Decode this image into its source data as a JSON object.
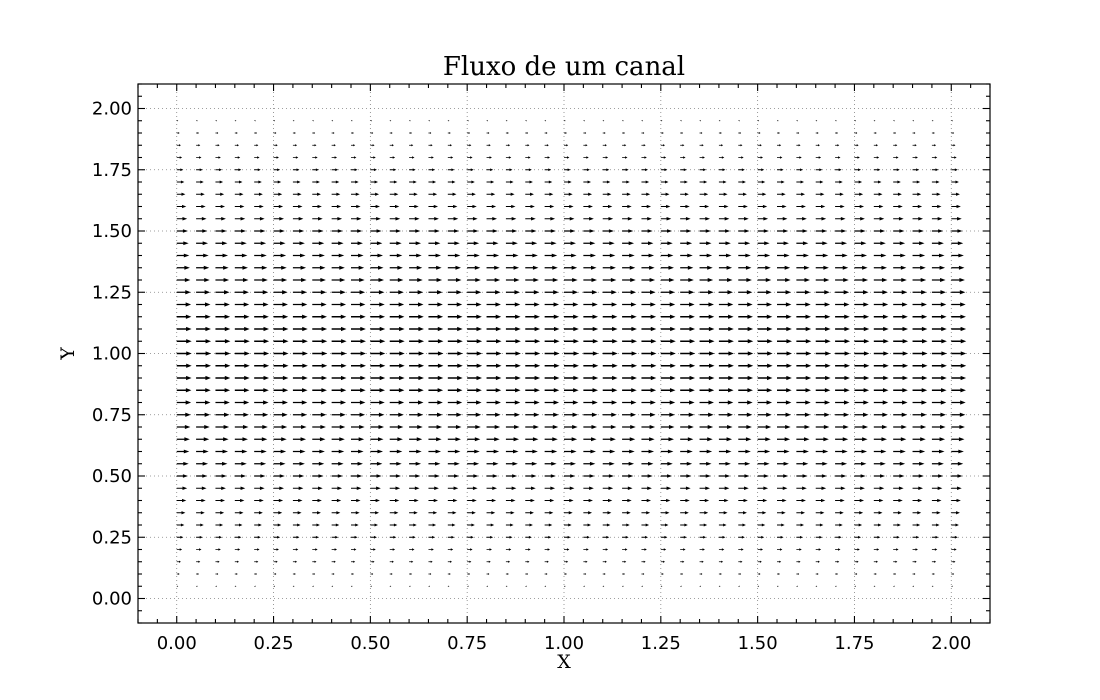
{
  "chart_data": {
    "type": "quiver",
    "title": "Fluxo de um canal",
    "xlabel": "X",
    "ylabel": "Y",
    "xlim": [
      -0.1,
      2.1
    ],
    "ylim": [
      -0.1,
      2.1
    ],
    "grid": true,
    "x_ticks": [
      "0.00",
      "0.25",
      "0.50",
      "0.75",
      "1.00",
      "1.25",
      "1.50",
      "1.75",
      "2.00"
    ],
    "y_ticks": [
      "0.00",
      "0.25",
      "0.50",
      "0.75",
      "1.00",
      "1.25",
      "1.50",
      "1.75",
      "2.00"
    ],
    "field": {
      "x_start": 0.0,
      "x_end": 2.0,
      "x_count": 41,
      "y_start": 0.0,
      "y_end": 2.0,
      "y_count": 41,
      "v": 0,
      "u_profile": "parabolic",
      "u_max": 1.0,
      "arrow_color": "#000000"
    }
  }
}
